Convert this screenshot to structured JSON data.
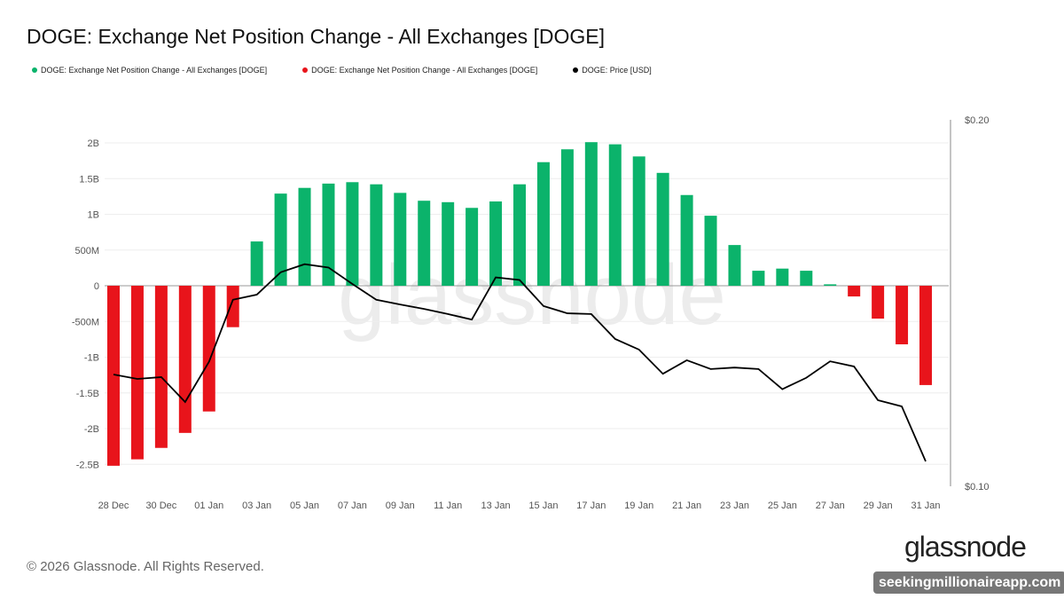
{
  "title": "DOGE: Exchange Net Position Change - All Exchanges [DOGE]",
  "legend": [
    {
      "label": "DOGE: Exchange Net Position Change - All Exchanges [DOGE]",
      "color": "#0bb36b"
    },
    {
      "label": "DOGE: Exchange Net Position Change - All Exchanges [DOGE]",
      "color": "#e8141b"
    },
    {
      "label": "DOGE: Price [USD]",
      "color": "#000000"
    }
  ],
  "footer": "© 2026 Glassnode. All Rights Reserved.",
  "logo": "glassnode",
  "watermark": "glassnode",
  "badge": "seekingmillionaireapp.com",
  "chart_data": {
    "type": "bar",
    "title": "DOGE: Exchange Net Position Change - All Exchanges [DOGE]",
    "categories": [
      "28 Dec",
      "29 Dec",
      "30 Dec",
      "31 Dec",
      "01 Jan",
      "02 Jan",
      "03 Jan",
      "04 Jan",
      "05 Jan",
      "06 Jan",
      "07 Jan",
      "08 Jan",
      "09 Jan",
      "10 Jan",
      "11 Jan",
      "12 Jan",
      "13 Jan",
      "14 Jan",
      "15 Jan",
      "16 Jan",
      "17 Jan",
      "18 Jan",
      "19 Jan",
      "20 Jan",
      "21 Jan",
      "22 Jan",
      "23 Jan",
      "24 Jan",
      "25 Jan",
      "26 Jan",
      "27 Jan",
      "28 Jan",
      "29 Jan",
      "30 Jan",
      "31 Jan"
    ],
    "x_tick_labels": [
      "28 Dec",
      "30 Dec",
      "01 Jan",
      "03 Jan",
      "05 Jan",
      "07 Jan",
      "09 Jan",
      "11 Jan",
      "13 Jan",
      "15 Jan",
      "17 Jan",
      "19 Jan",
      "21 Jan",
      "23 Jan",
      "25 Jan",
      "27 Jan",
      "29 Jan",
      "31 Jan"
    ],
    "series": [
      {
        "name": "DOGE: Exchange Net Position Change - All Exchanges [DOGE]",
        "axis": "left",
        "type": "bar",
        "positive_color": "#0bb36b",
        "negative_color": "#e8141b",
        "values": [
          -2520000000.0,
          -2430000000.0,
          -2270000000.0,
          -2060000000.0,
          -1760000000.0,
          -580000000.0,
          620000000.0,
          1290000000.0,
          1370000000.0,
          1430000000.0,
          1450000000.0,
          1420000000.0,
          1300000000.0,
          1190000000.0,
          1170000000.0,
          1090000000.0,
          1180000000.0,
          1420000000.0,
          1730000000.0,
          1910000000.0,
          2010000000.0,
          1980000000.0,
          1810000000.0,
          1580000000.0,
          1270000000.0,
          980000000.0,
          570000000.0,
          210000000.0,
          240000000.0,
          210000000.0,
          20000000.0,
          -150000000.0,
          -460000000.0,
          -820000000.0,
          -1390000000.0
        ]
      },
      {
        "name": "DOGE: Price [USD]",
        "axis": "right",
        "type": "line",
        "color": "#000000",
        "values": [
          0.1305,
          0.1293,
          0.1298,
          0.123,
          0.134,
          0.1509,
          0.1523,
          0.1584,
          0.1606,
          0.1597,
          0.1552,
          0.1509,
          0.1496,
          0.1484,
          0.147,
          0.1455,
          0.157,
          0.1563,
          0.1492,
          0.1472,
          0.147,
          0.1402,
          0.1373,
          0.1307,
          0.1344,
          0.132,
          0.1324,
          0.132,
          0.1265,
          0.1296,
          0.1341,
          0.1327,
          0.1235,
          0.1218,
          0.1068
        ]
      }
    ],
    "y_left": {
      "ticks": [
        2000000000.0,
        1500000000.0,
        1000000000.0,
        500000000.0,
        0,
        -500000000.0,
        -1000000000.0,
        -1500000000.0,
        -2000000000.0,
        -2500000000.0
      ],
      "tick_labels": [
        "2B",
        "1.5B",
        "1B",
        "500M",
        "0",
        "-500M",
        "-1B",
        "-1.5B",
        "-2B",
        "-2.5B"
      ]
    },
    "y_right": {
      "range": [
        0.1,
        0.2
      ],
      "tick_labels": [
        "$0.20",
        "$0.10"
      ]
    },
    "grid": true,
    "legend_position": "top-left"
  }
}
